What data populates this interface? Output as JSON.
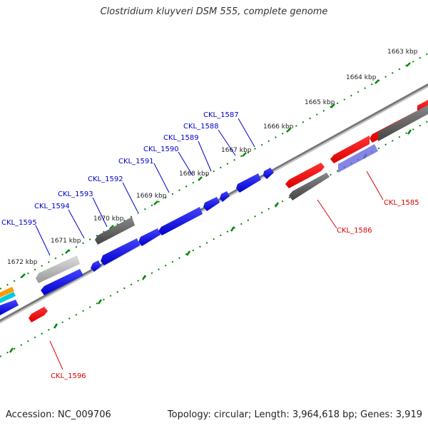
{
  "title": "Clostridium kluyveri DSM 555, complete genome",
  "footer": {
    "accession": "Accession: NC_009706",
    "stats": "Topology: circular; Length: 3,964,618 bp; Genes: 3,919"
  },
  "colors": {
    "forward_gene": "#0000dd",
    "reverse_gene": "#ee0000",
    "pseudo_gene": "#555555",
    "rna_gene": "#aaaaaa",
    "backbone": "#888888",
    "ticks": "#008800",
    "label_forward": "#0000cc",
    "label_reverse": "#dd0000"
  },
  "scale_labels": [
    "1663 kbp",
    "1664 kbp",
    "1665 kbp",
    "1666 kbp",
    "1667 kbp",
    "1668 kbp",
    "1669 kbp",
    "1670 kbp",
    "1671 kbp",
    "1672 kbp"
  ],
  "gene_labels": [
    "CKL_1587",
    "CKL_1588",
    "CKL_1589",
    "CKL_1590",
    "CKL_1591",
    "CKL_1592",
    "CKL_1593",
    "CKL_1594",
    "CKL_1595",
    "CKL_1585",
    "CKL_1586",
    "CKL_1596"
  ]
}
